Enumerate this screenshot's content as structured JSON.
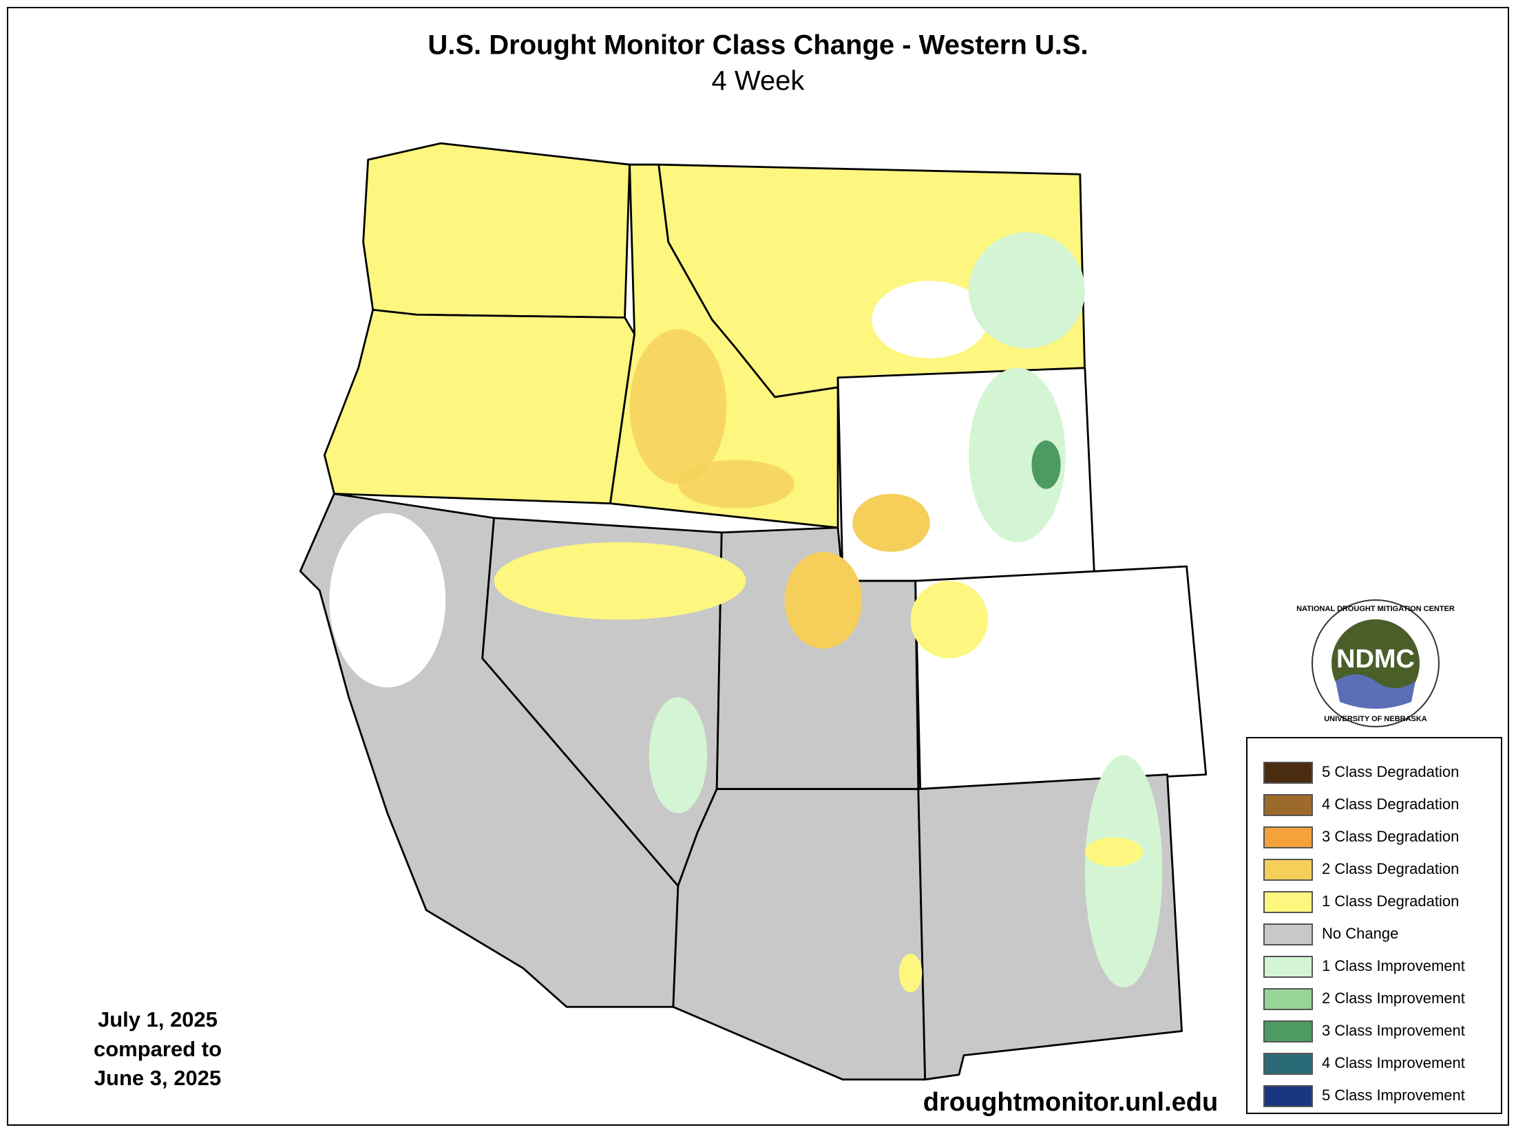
{
  "title": "U.S. Drought Monitor Class Change - Western U.S.",
  "subtitle": "4 Week",
  "date_lines": [
    "July 1, 2025",
    "compared to",
    "June 3, 2025"
  ],
  "url": "droughtmonitor.unl.edu",
  "logo": {
    "abbr": "NDMC",
    "top_text": "NATIONAL DROUGHT MITIGATION CENTER",
    "bottom_text": "UNIVERSITY OF NEBRASKA"
  },
  "legend": [
    {
      "label": "5 Class Degradation",
      "color": "#4a2c10"
    },
    {
      "label": "4 Class Degradation",
      "color": "#9c6a2a"
    },
    {
      "label": "3 Class Degradation",
      "color": "#f5a23a"
    },
    {
      "label": "2 Class Degradation",
      "color": "#f5cf5a"
    },
    {
      "label": "1 Class Degradation",
      "color": "#fdf67f"
    },
    {
      "label": "No Change",
      "color": "#c8c8c8"
    },
    {
      "label": "1 Class Improvement",
      "color": "#d4f5d4"
    },
    {
      "label": "2 Class Improvement",
      "color": "#98d497"
    },
    {
      "label": "3 Class Improvement",
      "color": "#4e9a63"
    },
    {
      "label": "4 Class Improvement",
      "color": "#2a6a76"
    },
    {
      "label": "5 Class Improvement",
      "color": "#1a3580"
    }
  ]
}
